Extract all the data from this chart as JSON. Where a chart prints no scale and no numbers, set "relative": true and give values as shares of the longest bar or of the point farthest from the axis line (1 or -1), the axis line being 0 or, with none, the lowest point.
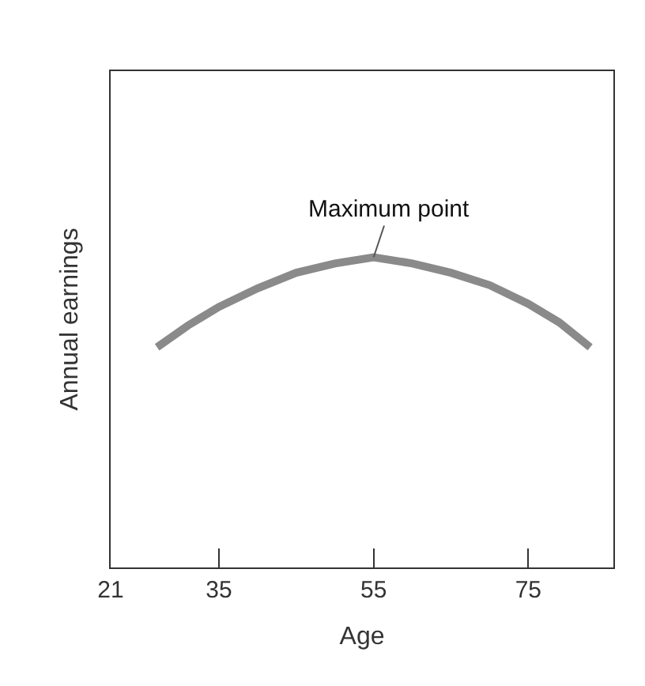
{
  "chart_data": {
    "type": "line",
    "relative": true,
    "xlabel": "Age",
    "ylabel": "Annual earnings",
    "xlim": [
      21,
      86
    ],
    "xticks": [
      21,
      35,
      55,
      75
    ],
    "marker": "none",
    "line_style": "solid",
    "x": [
      27,
      31,
      35,
      40,
      45,
      50,
      55,
      60,
      65,
      70,
      75,
      79,
      83
    ],
    "series": [
      {
        "color": "#8a8a8a",
        "values": [
          0.71,
          0.78,
          0.84,
          0.9,
          0.95,
          0.98,
          1.0,
          0.98,
          0.95,
          0.91,
          0.85,
          0.79,
          0.71
        ]
      }
    ],
    "annotations": [
      {
        "text": "Maximum point",
        "x": 55,
        "y": 1.0
      }
    ]
  }
}
